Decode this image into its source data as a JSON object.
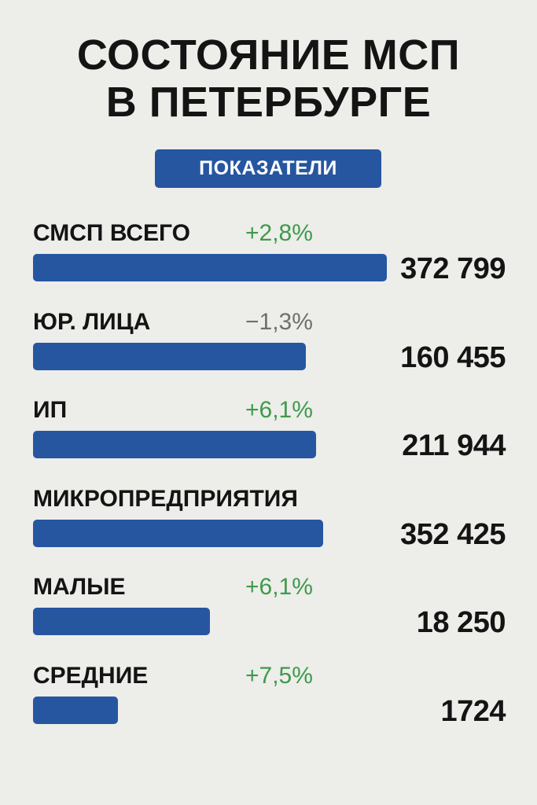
{
  "title_line1": "СОСТОЯНИЕ МСП",
  "title_line2": "В ПЕТЕРБУРГЕ",
  "badge": "ПОКАЗАТЕЛИ",
  "colors": {
    "background": "#ededea",
    "bar": "#2756a1",
    "positive": "#3e9a4c",
    "negative": "#6f6f6f"
  },
  "chart_data": {
    "type": "bar",
    "orientation": "horizontal",
    "categories": [
      "СМСП ВСЕГО",
      "ЮР. ЛИЦА",
      "ИП",
      "МИКРОПРЕДПРИЯТИЯ",
      "МАЛЫЕ",
      "СРЕДНИЕ"
    ],
    "values": [
      372799,
      160455,
      211944,
      352425,
      18250,
      1724
    ],
    "value_labels": [
      "372 799",
      "160 455",
      "211 944",
      "352 425",
      "18 250",
      "1724"
    ],
    "changes": [
      "+2,8%",
      "−1,3%",
      "+6,1%",
      "",
      "+6,1%",
      "+7,5%"
    ],
    "change_direction": [
      "up",
      "down",
      "up",
      "",
      "up",
      "up"
    ],
    "bar_fill_fraction": [
      1.0,
      0.77,
      0.8,
      0.82,
      0.5,
      0.24
    ]
  }
}
